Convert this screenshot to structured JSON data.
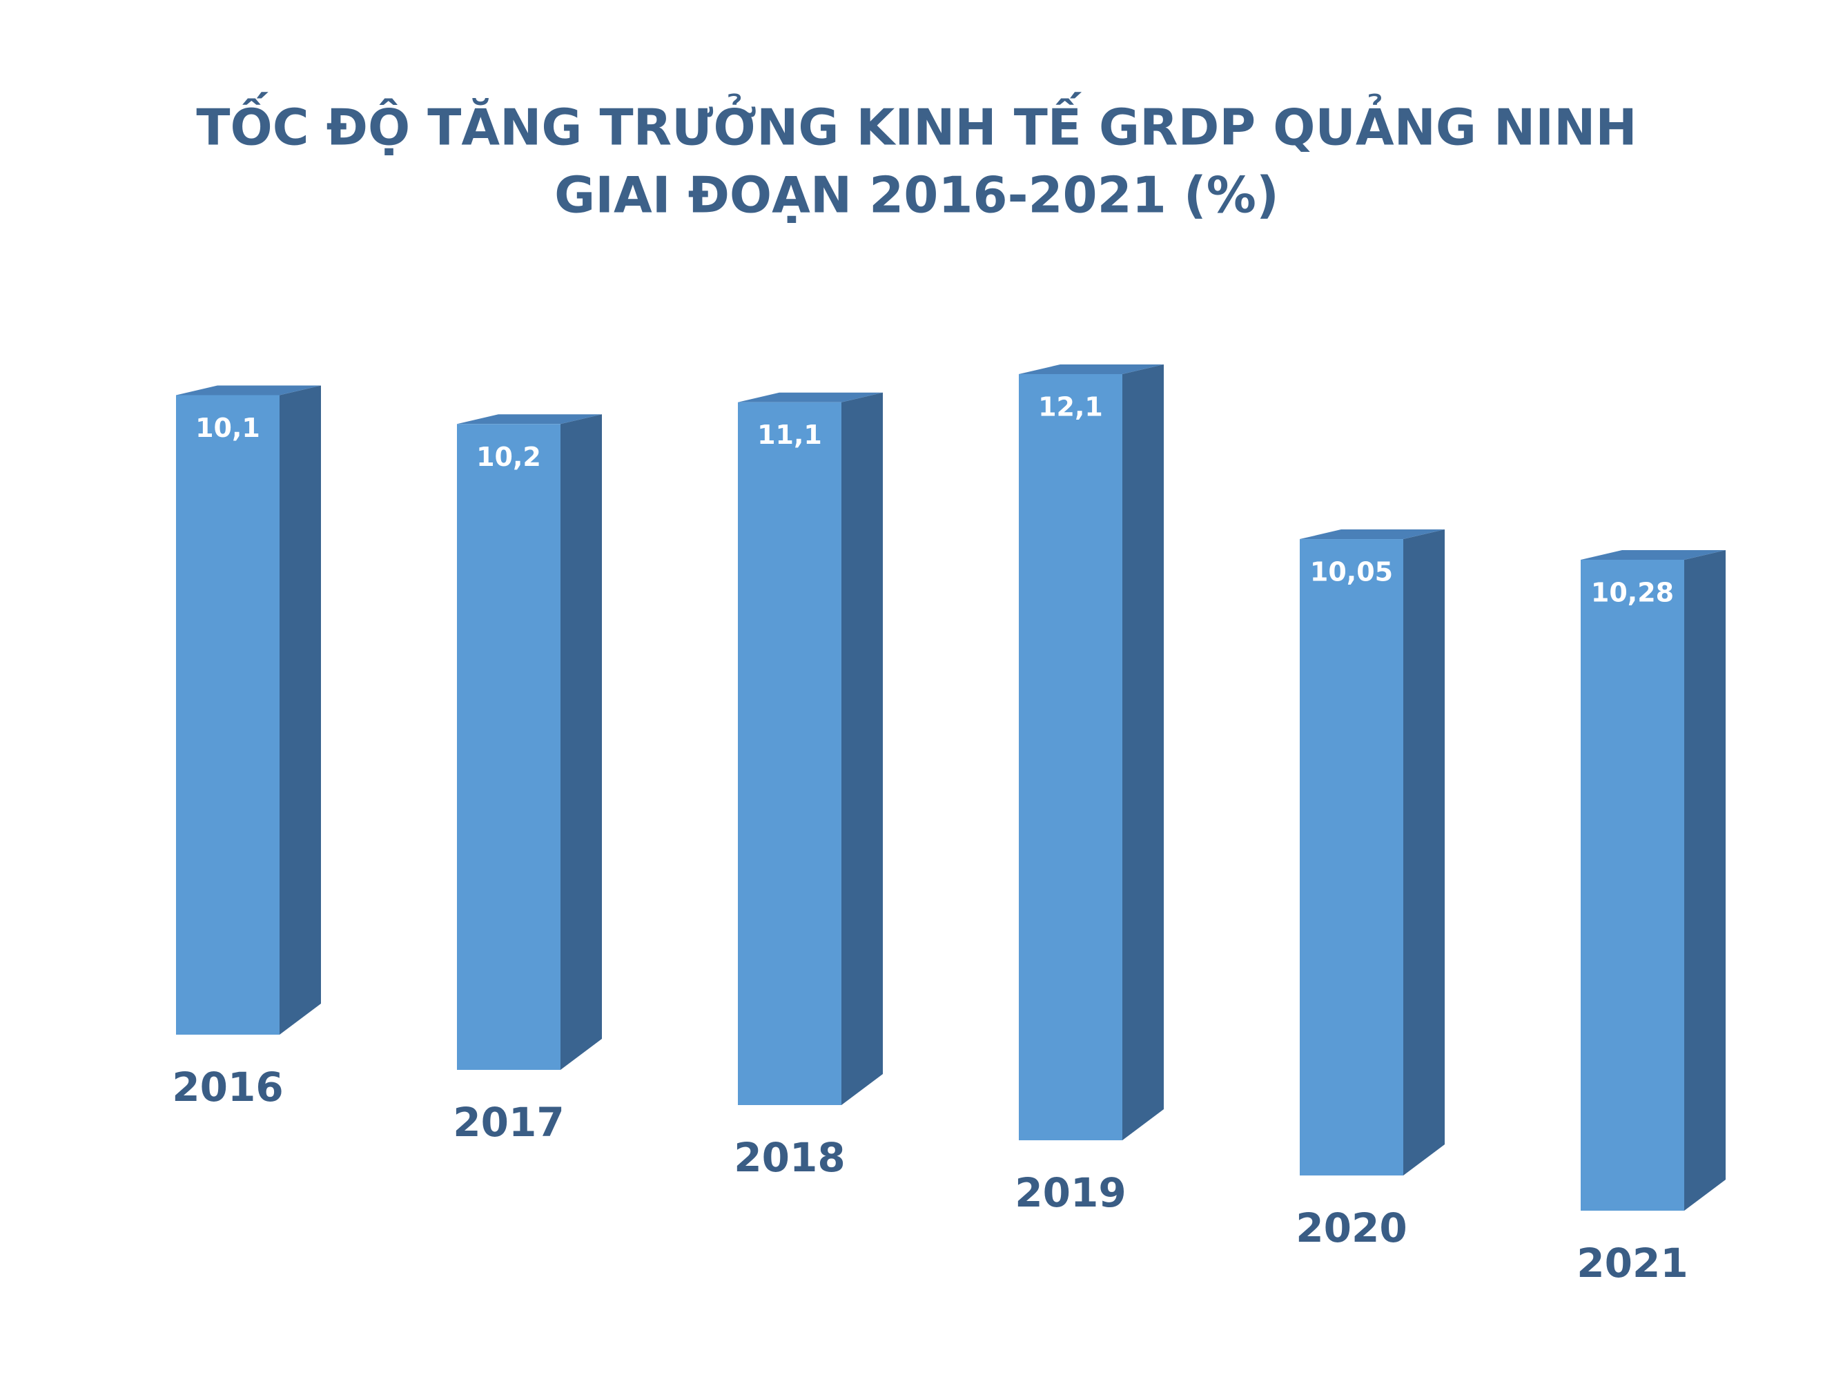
{
  "chart_data": {
    "type": "bar3d",
    "title": "TỐC ĐỘ TĂNG TRƯỞNG KINH TẾ GRDP QUẢNG NINH",
    "subtitle": "GIAI ĐOẠN 2016-2021 (%)",
    "categories": [
      "2016",
      "2017",
      "2018",
      "2019",
      "2020",
      "2021"
    ],
    "values": [
      10.1,
      10.2,
      11.1,
      12.1,
      10.05,
      10.28
    ],
    "value_labels": [
      "10,1",
      "10,2",
      "11,1",
      "12,1",
      "10,05",
      "10,28"
    ],
    "color": "#5b9bd5"
  }
}
